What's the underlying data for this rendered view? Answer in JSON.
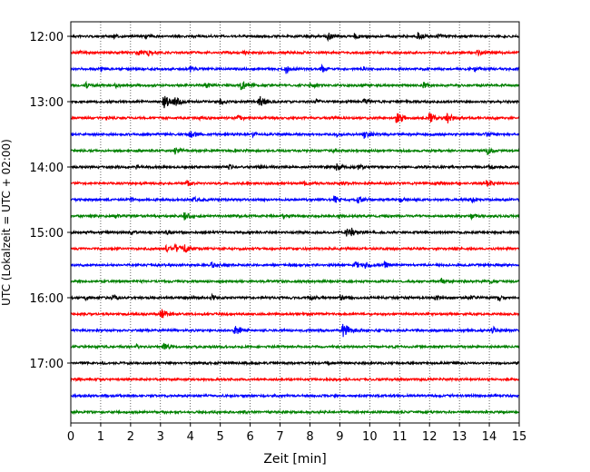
{
  "chart_data": {
    "type": "line",
    "title": "",
    "xlabel": "Zeit  [min]",
    "ylabel": "UTC (Lokalzeit = UTC + 02:00)",
    "xlim": [
      0,
      15
    ],
    "xticks": [
      "0",
      "1",
      "2",
      "3",
      "4",
      "5",
      "6",
      "7",
      "8",
      "9",
      "10",
      "11",
      "12",
      "13",
      "14",
      "15"
    ],
    "yticks": [
      "12:00",
      "13:00",
      "14:00",
      "15:00",
      "16:00",
      "17:00"
    ],
    "grid": "x-dotted",
    "trace_colors": [
      "#000000",
      "#ff0000",
      "#0000ff",
      "#008000"
    ],
    "traces_start": "12:00",
    "trace_interval_min": 15,
    "series": [
      {
        "start": "12:00",
        "color": "#000000",
        "events": [
          [
            1.4,
            2
          ],
          [
            2.5,
            2
          ],
          [
            8.6,
            4
          ],
          [
            9.5,
            3
          ],
          [
            11.6,
            4
          ],
          [
            12.3,
            2
          ]
        ]
      },
      {
        "start": "12:15",
        "color": "#ff0000",
        "events": [
          [
            0.3,
            2
          ],
          [
            2.2,
            4
          ],
          [
            2.6,
            3
          ],
          [
            5.8,
            2
          ],
          [
            13.6,
            3
          ],
          [
            14.2,
            2
          ]
        ]
      },
      {
        "start": "12:30",
        "color": "#0000ff",
        "events": [
          [
            1.0,
            2
          ],
          [
            4.0,
            3
          ],
          [
            7.2,
            5
          ],
          [
            8.4,
            3
          ],
          [
            9.8,
            2
          ],
          [
            13.5,
            3
          ]
        ]
      },
      {
        "start": "12:45",
        "color": "#008000",
        "events": [
          [
            0.5,
            3
          ],
          [
            1.5,
            2
          ],
          [
            4.5,
            3
          ],
          [
            5.7,
            6
          ],
          [
            8.0,
            3
          ],
          [
            11.8,
            3
          ]
        ]
      },
      {
        "start": "13:00",
        "color": "#000000",
        "events": [
          [
            3.1,
            8
          ],
          [
            3.5,
            4
          ],
          [
            5.0,
            3
          ],
          [
            6.3,
            6
          ],
          [
            8.2,
            2
          ],
          [
            9.8,
            3
          ]
        ]
      },
      {
        "start": "13:15",
        "color": "#ff0000",
        "events": [
          [
            1.2,
            2
          ],
          [
            4.3,
            2
          ],
          [
            5.6,
            3
          ],
          [
            10.9,
            6
          ],
          [
            12.0,
            6
          ],
          [
            12.6,
            5
          ]
        ]
      },
      {
        "start": "13:30",
        "color": "#0000ff",
        "events": [
          [
            4.0,
            4
          ],
          [
            6.1,
            2
          ],
          [
            8.9,
            2
          ],
          [
            9.8,
            4
          ],
          [
            13.9,
            2
          ]
        ]
      },
      {
        "start": "13:45",
        "color": "#008000",
        "events": [
          [
            3.5,
            4
          ],
          [
            5.5,
            2
          ],
          [
            8.8,
            2
          ],
          [
            13.9,
            4
          ]
        ]
      },
      {
        "start": "14:00",
        "color": "#000000",
        "events": [
          [
            2.2,
            2
          ],
          [
            5.3,
            3
          ],
          [
            6.3,
            2
          ],
          [
            8.9,
            4
          ],
          [
            9.6,
            4
          ],
          [
            14.0,
            2
          ]
        ]
      },
      {
        "start": "14:15",
        "color": "#ff0000",
        "events": [
          [
            3.9,
            3
          ],
          [
            7.8,
            2
          ],
          [
            9.0,
            2
          ],
          [
            12.2,
            2
          ],
          [
            13.9,
            4
          ]
        ]
      },
      {
        "start": "14:30",
        "color": "#0000ff",
        "events": [
          [
            2.0,
            2
          ],
          [
            4.1,
            3
          ],
          [
            8.8,
            4
          ],
          [
            9.6,
            4
          ],
          [
            11.0,
            2
          ],
          [
            13.4,
            3
          ]
        ]
      },
      {
        "start": "14:45",
        "color": "#008000",
        "events": [
          [
            1.5,
            2
          ],
          [
            3.8,
            4
          ],
          [
            7.1,
            3
          ],
          [
            9.0,
            2
          ],
          [
            13.4,
            3
          ]
        ]
      },
      {
        "start": "15:00",
        "color": "#000000",
        "events": [
          [
            2.0,
            2
          ],
          [
            3.2,
            2
          ],
          [
            9.2,
            4
          ],
          [
            9.4,
            3
          ]
        ]
      },
      {
        "start": "15:15",
        "color": "#ff0000",
        "events": [
          [
            3.5,
            5
          ],
          [
            3.2,
            3
          ],
          [
            3.8,
            4
          ]
        ]
      },
      {
        "start": "15:30",
        "color": "#0000ff",
        "events": [
          [
            4.7,
            4
          ],
          [
            9.5,
            4
          ],
          [
            9.8,
            5
          ],
          [
            10.5,
            3
          ]
        ]
      },
      {
        "start": "15:45",
        "color": "#008000",
        "events": [
          [
            12.4,
            3
          ],
          [
            14.0,
            2
          ]
        ]
      },
      {
        "start": "16:00",
        "color": "#000000",
        "events": [
          [
            0.5,
            2
          ],
          [
            1.4,
            3
          ],
          [
            4.7,
            4
          ],
          [
            8.0,
            3
          ],
          [
            9.0,
            3
          ],
          [
            12.2,
            3
          ],
          [
            13.3,
            3
          ],
          [
            14.3,
            2
          ]
        ]
      },
      {
        "start": "16:15",
        "color": "#ff0000",
        "events": [
          [
            3.0,
            6
          ]
        ]
      },
      {
        "start": "16:30",
        "color": "#0000ff",
        "events": [
          [
            5.5,
            6
          ],
          [
            9.1,
            8
          ],
          [
            14.1,
            4
          ]
        ]
      },
      {
        "start": "16:45",
        "color": "#008000",
        "events": [
          [
            2.2,
            2
          ],
          [
            3.1,
            4
          ]
        ]
      },
      {
        "start": "17:00",
        "color": "#000000",
        "events": [
          [
            8.6,
            1
          ]
        ]
      },
      {
        "start": "17:15",
        "color": "#ff0000",
        "events": []
      },
      {
        "start": "17:30",
        "color": "#0000ff",
        "events": [
          [
            10.8,
            1
          ]
        ]
      },
      {
        "start": "17:45",
        "color": "#008000",
        "events": [
          [
            5.8,
            1
          ]
        ]
      }
    ]
  }
}
